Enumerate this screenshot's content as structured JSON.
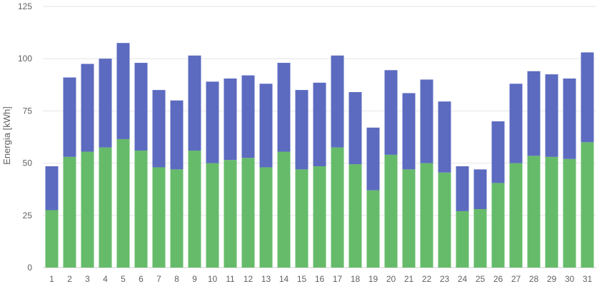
{
  "chart_data": {
    "type": "bar",
    "stacked": true,
    "ylabel": "Energia [kWh]",
    "xlabel": "",
    "ylim": [
      0,
      125
    ],
    "yticks": [
      0,
      25,
      50,
      75,
      100,
      125
    ],
    "grid": true,
    "categories": [
      "1",
      "2",
      "3",
      "4",
      "5",
      "6",
      "7",
      "8",
      "9",
      "10",
      "11",
      "12",
      "13",
      "14",
      "15",
      "16",
      "17",
      "18",
      "19",
      "20",
      "21",
      "22",
      "23",
      "24",
      "25",
      "26",
      "27",
      "28",
      "29",
      "30",
      "31"
    ],
    "series": [
      {
        "color": "#66bb6a",
        "values": [
          27.5,
          53,
          55.5,
          57.5,
          61.5,
          56,
          48,
          47,
          56,
          50,
          51.5,
          52.5,
          48,
          55.5,
          47,
          48.5,
          57.5,
          49.5,
          37,
          54,
          47,
          50,
          45.5,
          27,
          28,
          40.5,
          50,
          53.5,
          53,
          52,
          60
        ]
      },
      {
        "color": "#5c6bc0",
        "values": [
          21,
          38,
          42,
          42.5,
          46,
          42,
          37,
          33,
          45.5,
          39,
          39,
          39.5,
          40,
          42.5,
          38,
          40,
          44,
          34.5,
          30,
          40.5,
          36.5,
          40,
          34,
          21.5,
          19,
          29.5,
          38,
          40.5,
          39.5,
          38.5,
          43
        ]
      }
    ]
  }
}
